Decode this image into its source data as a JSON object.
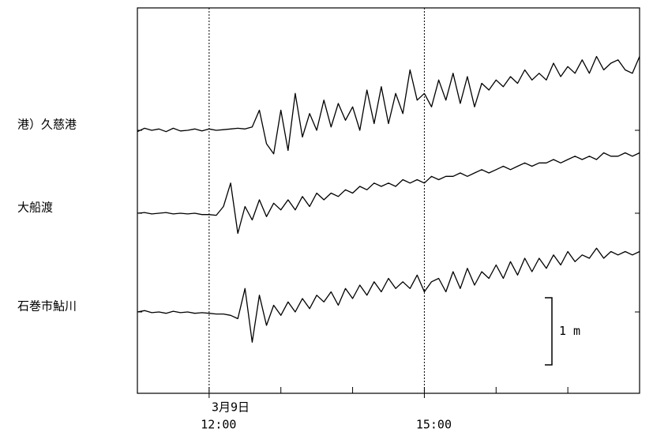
{
  "chart_data": {
    "type": "line",
    "date_label": "3月9日",
    "x": [
      11.0,
      11.1,
      11.2,
      11.3,
      11.4,
      11.5,
      11.6,
      11.7,
      11.8,
      11.9,
      12.0,
      12.1,
      12.2,
      12.3,
      12.4,
      12.5,
      12.6,
      12.7,
      12.8,
      12.9,
      13.0,
      13.1,
      13.2,
      13.3,
      13.4,
      13.5,
      13.6,
      13.7,
      13.8,
      13.9,
      14.0,
      14.1,
      14.2,
      14.3,
      14.4,
      14.5,
      14.6,
      14.7,
      14.8,
      14.9,
      15.0,
      15.1,
      15.2,
      15.3,
      15.4,
      15.5,
      15.6,
      15.7,
      15.8,
      15.9,
      16.0,
      16.1,
      16.2,
      16.3,
      16.4,
      16.5,
      16.6,
      16.7,
      16.8,
      16.9,
      17.0,
      17.1,
      17.2,
      17.3,
      17.4,
      17.5,
      17.6,
      17.7,
      17.8,
      17.9,
      18.0
    ],
    "xlim": [
      11,
      18
    ],
    "xticks": [
      {
        "value": 12,
        "label": "12:00"
      },
      {
        "value": 15,
        "label": "15:00"
      }
    ],
    "minor_xticks": [
      13,
      14,
      16,
      17
    ],
    "scale_bar": {
      "value": 1,
      "label": "1 m"
    },
    "color": "#000000",
    "series": [
      {
        "name": "港）久慈港",
        "values": [
          -0.02,
          0.03,
          0.0,
          0.02,
          -0.02,
          0.03,
          -0.01,
          0.0,
          0.02,
          -0.01,
          0.02,
          0.0,
          0.01,
          0.02,
          0.03,
          0.02,
          0.05,
          0.3,
          -0.2,
          -0.35,
          0.3,
          -0.3,
          0.55,
          -0.1,
          0.25,
          0.0,
          0.45,
          0.05,
          0.4,
          0.15,
          0.35,
          0.0,
          0.6,
          0.1,
          0.65,
          0.1,
          0.55,
          0.25,
          0.9,
          0.45,
          0.55,
          0.35,
          0.75,
          0.45,
          0.85,
          0.4,
          0.8,
          0.35,
          0.7,
          0.6,
          0.75,
          0.65,
          0.8,
          0.7,
          0.9,
          0.75,
          0.85,
          0.75,
          1.0,
          0.8,
          0.95,
          0.85,
          1.05,
          0.85,
          1.1,
          0.9,
          1.0,
          1.05,
          0.9,
          0.85,
          1.1
        ]
      },
      {
        "name": "大船渡",
        "values": [
          0.0,
          0.01,
          -0.01,
          0.0,
          0.01,
          -0.01,
          0.0,
          -0.01,
          0.0,
          -0.02,
          -0.02,
          -0.03,
          0.1,
          0.45,
          -0.3,
          0.1,
          -0.1,
          0.2,
          -0.05,
          0.15,
          0.05,
          0.2,
          0.05,
          0.25,
          0.1,
          0.3,
          0.2,
          0.3,
          0.25,
          0.35,
          0.3,
          0.4,
          0.35,
          0.45,
          0.4,
          0.45,
          0.4,
          0.5,
          0.45,
          0.5,
          0.45,
          0.55,
          0.5,
          0.55,
          0.55,
          0.6,
          0.55,
          0.6,
          0.65,
          0.6,
          0.65,
          0.7,
          0.65,
          0.7,
          0.75,
          0.7,
          0.75,
          0.75,
          0.8,
          0.75,
          0.8,
          0.85,
          0.8,
          0.85,
          0.8,
          0.9,
          0.85,
          0.85,
          0.9,
          0.85,
          0.9
        ]
      },
      {
        "name": "石巻市鮎川",
        "values": [
          0.0,
          0.02,
          -0.01,
          0.0,
          -0.02,
          0.01,
          -0.01,
          0.0,
          -0.02,
          -0.01,
          -0.02,
          -0.03,
          -0.03,
          -0.05,
          -0.1,
          0.35,
          -0.45,
          0.25,
          -0.2,
          0.1,
          -0.05,
          0.15,
          0.0,
          0.2,
          0.05,
          0.25,
          0.15,
          0.3,
          0.1,
          0.35,
          0.2,
          0.4,
          0.25,
          0.45,
          0.3,
          0.5,
          0.35,
          0.45,
          0.35,
          0.55,
          0.3,
          0.45,
          0.5,
          0.3,
          0.6,
          0.35,
          0.65,
          0.4,
          0.6,
          0.5,
          0.7,
          0.5,
          0.75,
          0.55,
          0.8,
          0.6,
          0.8,
          0.65,
          0.85,
          0.7,
          0.9,
          0.75,
          0.85,
          0.8,
          0.95,
          0.8,
          0.9,
          0.85,
          0.9,
          0.85,
          0.9
        ]
      }
    ]
  }
}
